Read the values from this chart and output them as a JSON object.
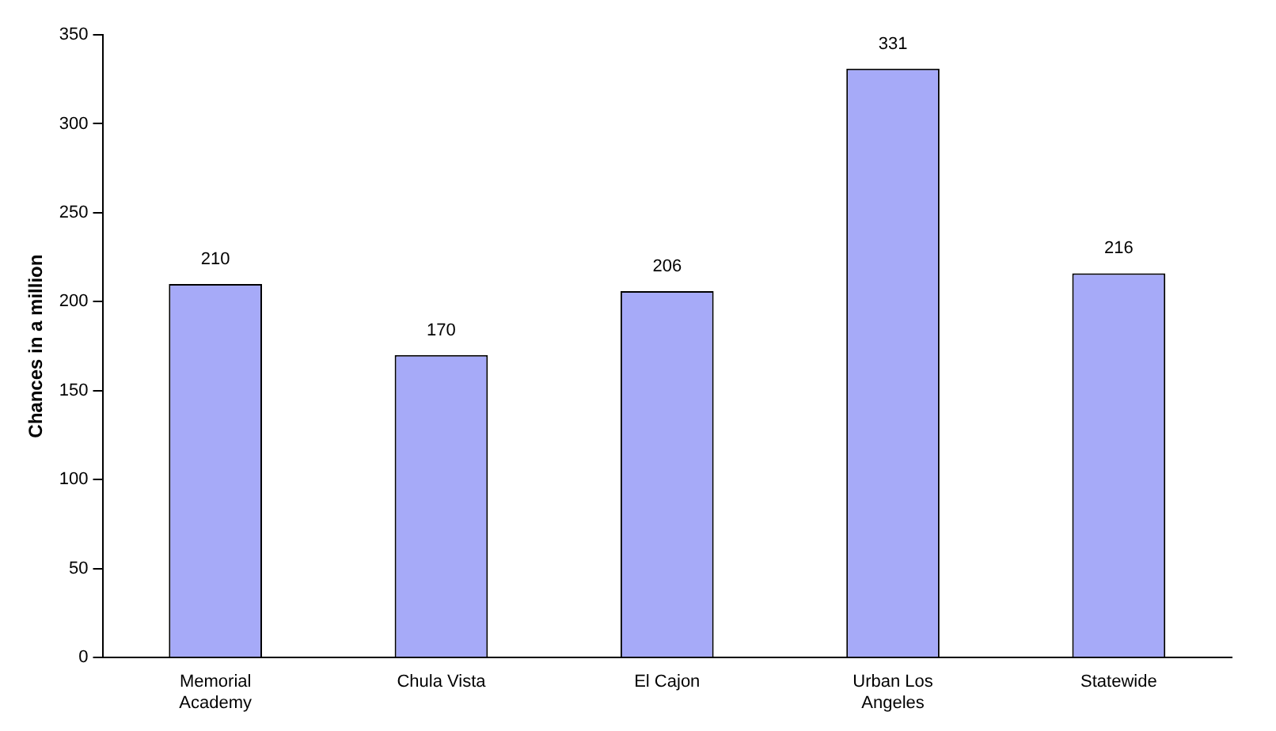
{
  "chart_data": {
    "type": "bar",
    "ylabel": "Chances in a million",
    "categories": [
      "Memorial Academy",
      "Chula Vista",
      "El Cajon",
      "Urban Los Angeles",
      "Statewide"
    ],
    "values": [
      210,
      170,
      206,
      331,
      216
    ],
    "color": "#a6aaf8",
    "ylim": [
      0,
      350
    ],
    "yticks": [
      0,
      50,
      100,
      150,
      200,
      250,
      300,
      350
    ],
    "grid": false,
    "legend": false,
    "data_labels": true
  }
}
